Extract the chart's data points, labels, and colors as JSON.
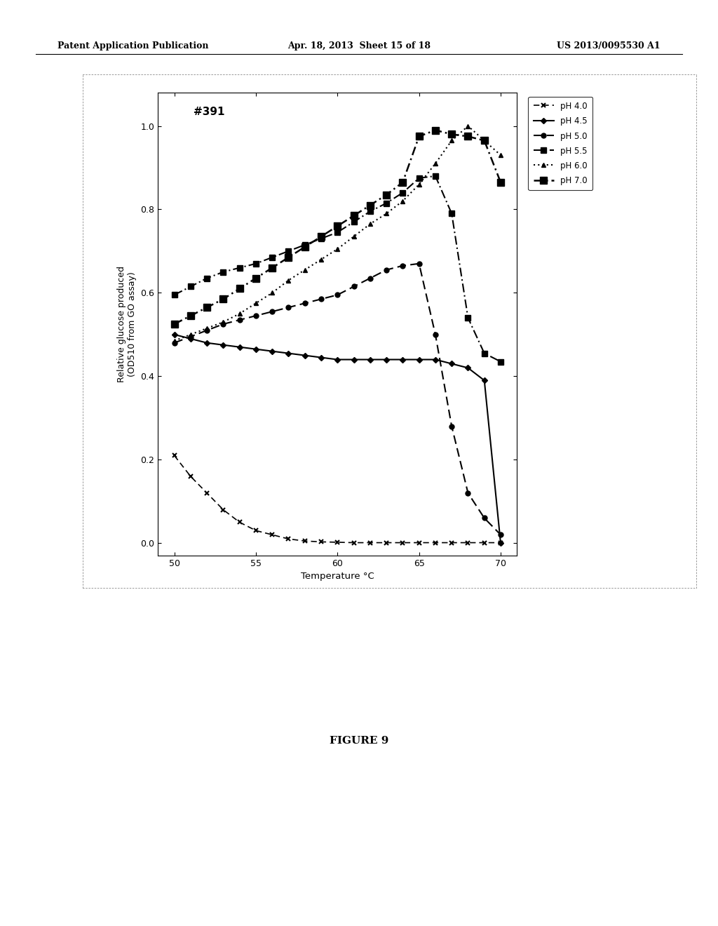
{
  "title": "#391",
  "xlabel": "Temperature °C",
  "ylabel": "Relative glucose produced\n(OD510 from GO assay)",
  "xlim": [
    49,
    71
  ],
  "ylim": [
    -0.03,
    1.08
  ],
  "xticks": [
    50,
    55,
    60,
    65,
    70
  ],
  "yticks": [
    0,
    0.2,
    0.4,
    0.6,
    0.8,
    1
  ],
  "series": {
    "pH 4.0": {
      "x": [
        50,
        51,
        52,
        53,
        54,
        55,
        56,
        57,
        58,
        59,
        60,
        61,
        62,
        63,
        64,
        65,
        66,
        67,
        68,
        69,
        70
      ],
      "y": [
        0.21,
        0.16,
        0.12,
        0.08,
        0.05,
        0.03,
        0.02,
        0.01,
        0.005,
        0.003,
        0.002,
        0.001,
        0.001,
        0.001,
        0.001,
        0.001,
        0.001,
        0.001,
        0.001,
        0.001,
        0.001
      ]
    },
    "pH 4.5": {
      "x": [
        50,
        51,
        52,
        53,
        54,
        55,
        56,
        57,
        58,
        59,
        60,
        61,
        62,
        63,
        64,
        65,
        66,
        67,
        68,
        69,
        70
      ],
      "y": [
        0.5,
        0.49,
        0.48,
        0.475,
        0.47,
        0.465,
        0.46,
        0.455,
        0.45,
        0.445,
        0.44,
        0.44,
        0.44,
        0.44,
        0.44,
        0.44,
        0.44,
        0.43,
        0.42,
        0.39,
        0.0
      ]
    },
    "pH 5.0": {
      "x": [
        50,
        51,
        52,
        53,
        54,
        55,
        56,
        57,
        58,
        59,
        60,
        61,
        62,
        63,
        64,
        65,
        66,
        67,
        68,
        69,
        70
      ],
      "y": [
        0.48,
        0.495,
        0.51,
        0.525,
        0.535,
        0.545,
        0.555,
        0.565,
        0.575,
        0.585,
        0.595,
        0.615,
        0.635,
        0.655,
        0.665,
        0.67,
        0.5,
        0.28,
        0.12,
        0.06,
        0.02
      ]
    },
    "pH 5.5": {
      "x": [
        50,
        51,
        52,
        53,
        54,
        55,
        56,
        57,
        58,
        59,
        60,
        61,
        62,
        63,
        64,
        65,
        66,
        67,
        68,
        69,
        70
      ],
      "y": [
        0.595,
        0.615,
        0.635,
        0.65,
        0.66,
        0.67,
        0.685,
        0.7,
        0.715,
        0.73,
        0.745,
        0.77,
        0.795,
        0.815,
        0.84,
        0.875,
        0.88,
        0.79,
        0.54,
        0.455,
        0.435
      ]
    },
    "pH 6.0": {
      "x": [
        50,
        51,
        52,
        53,
        54,
        55,
        56,
        57,
        58,
        59,
        60,
        61,
        62,
        63,
        64,
        65,
        66,
        67,
        68,
        69,
        70
      ],
      "y": [
        0.485,
        0.5,
        0.515,
        0.53,
        0.55,
        0.575,
        0.6,
        0.63,
        0.655,
        0.68,
        0.705,
        0.735,
        0.765,
        0.79,
        0.82,
        0.86,
        0.91,
        0.965,
        1.0,
        0.965,
        0.93
      ]
    },
    "pH 7.0": {
      "x": [
        50,
        51,
        52,
        53,
        54,
        55,
        56,
        57,
        58,
        59,
        60,
        61,
        62,
        63,
        64,
        65,
        66,
        67,
        68,
        69,
        70
      ],
      "y": [
        0.525,
        0.545,
        0.565,
        0.585,
        0.61,
        0.635,
        0.66,
        0.685,
        0.71,
        0.735,
        0.76,
        0.785,
        0.81,
        0.835,
        0.865,
        0.975,
        0.99,
        0.98,
        0.975,
        0.965,
        0.865
      ]
    }
  },
  "legend_order": [
    "pH 4.0",
    "pH 4.5",
    "pH 5.0",
    "pH 5.5",
    "pH 6.0",
    "pH 7.0"
  ],
  "figure_caption": "FIGURE 9",
  "header_left": "Patent Application Publication",
  "header_center": "Apr. 18, 2013  Sheet 15 of 18",
  "header_right": "US 2013/0095530 A1"
}
